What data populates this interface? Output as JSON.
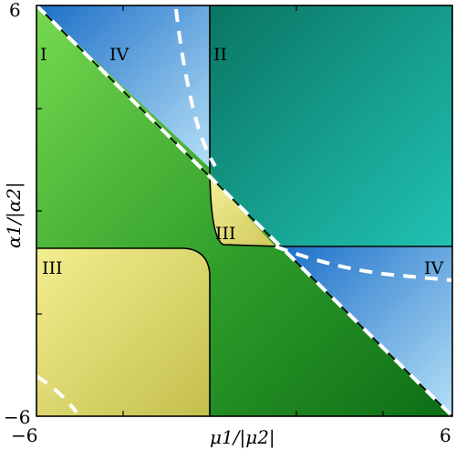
{
  "diagram": {
    "x_axis": {
      "label": "μ1/|μ2|",
      "range": [
        -6,
        6
      ],
      "tick_labels": [
        "−6",
        "6"
      ]
    },
    "y_axis": {
      "label": "α1/|α2|",
      "range": [
        -6,
        6
      ],
      "tick_labels": [
        "−6",
        "6"
      ]
    },
    "regions": [
      {
        "id": "I",
        "label": "I",
        "color": "#5cc23a"
      },
      {
        "id": "II",
        "label": "II",
        "color": "#138577"
      },
      {
        "id": "III",
        "label": "III",
        "color": "#e2de70"
      },
      {
        "id": "IV",
        "label": "IV",
        "color": "#3d90df"
      }
    ],
    "region_labels": [
      "I",
      "IV",
      "II",
      "III",
      "III",
      "IV"
    ],
    "colors": {
      "green_light": "#6ed34a",
      "green_dark": "#127b1c",
      "teal_dark": "#0b7a66",
      "teal_light": "#1ab5a8",
      "yellow_light": "#f0ea88",
      "yellow_dark": "#c6c14e",
      "blue_dark": "#1f78d0",
      "blue_light": "#a8d9f5",
      "dashed_curve": "#ffffff",
      "boundary": "#000000"
    }
  }
}
